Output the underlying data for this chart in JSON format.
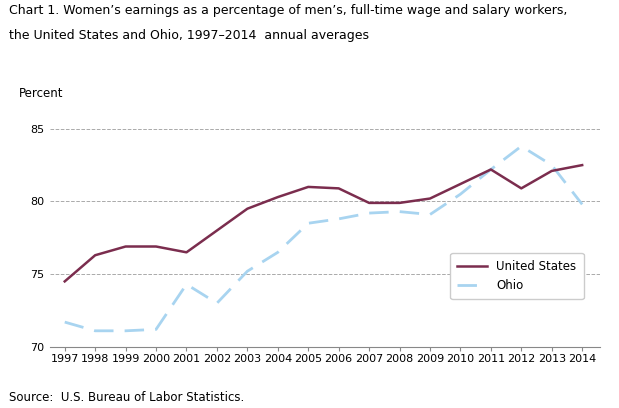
{
  "years": [
    1997,
    1998,
    1999,
    2000,
    2001,
    2002,
    2003,
    2004,
    2005,
    2006,
    2007,
    2008,
    2009,
    2010,
    2011,
    2012,
    2013,
    2014
  ],
  "us_values": [
    74.5,
    76.3,
    76.9,
    76.9,
    76.5,
    78.0,
    79.5,
    80.3,
    81.0,
    80.9,
    79.9,
    79.9,
    80.2,
    81.2,
    82.2,
    80.9,
    82.1,
    82.5
  ],
  "ohio_values": [
    71.7,
    71.1,
    71.1,
    71.2,
    74.3,
    73.0,
    75.2,
    76.5,
    78.5,
    78.8,
    79.2,
    79.3,
    79.1,
    80.5,
    82.2,
    83.8,
    82.5,
    79.8
  ],
  "us_color": "#7B2D4E",
  "ohio_color": "#A8D4F0",
  "title_line1": "Chart 1. Women’s earnings as a percentage of men’s, full-time wage and salary workers,",
  "title_line2": "the United States and Ohio, 1997–2014  annual averages",
  "ylabel": "Percent",
  "ylim": [
    70,
    86
  ],
  "yticks": [
    70,
    75,
    80,
    85
  ],
  "xlim": [
    1996.5,
    2014.6
  ],
  "source_text": "Source:  U.S. Bureau of Labor Statistics.",
  "legend_us": "United States",
  "legend_ohio": "Ohio",
  "tick_fontsize": 8.0,
  "title_fontsize": 9.0,
  "ylabel_fontsize": 8.5,
  "source_fontsize": 8.5
}
